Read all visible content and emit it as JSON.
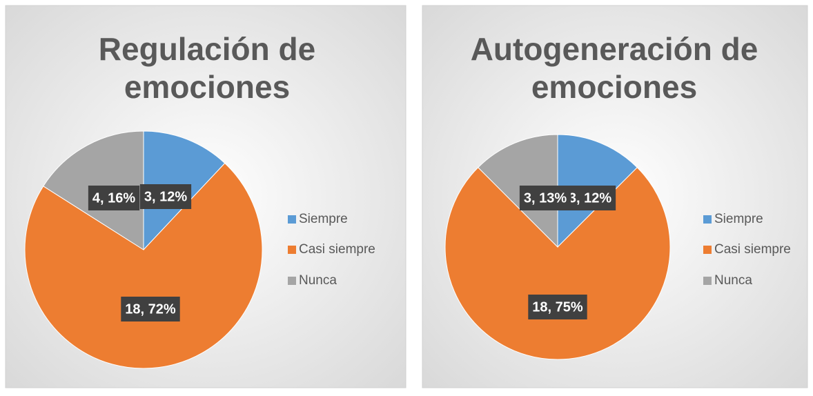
{
  "chart_data": [
    {
      "type": "pie",
      "title": "Regulación de emociones",
      "categories": [
        "Siempre",
        "Casi siempre",
        "Nunca"
      ],
      "values": [
        3,
        18,
        4
      ],
      "value_labels": [
        "3, 12%",
        "18, 72%",
        "4, 16%"
      ],
      "colors": [
        "#5b9bd5",
        "#ed7d31",
        "#a5a5a5"
      ],
      "legend": "right"
    },
    {
      "type": "pie",
      "title": "Autogeneración de emociones",
      "categories": [
        "Siempre",
        "Casi siempre",
        "Nunca"
      ],
      "values": [
        3,
        18,
        3
      ],
      "value_labels": [
        "3, 12%",
        "18, 75%",
        "3, 13%"
      ],
      "colors": [
        "#5b9bd5",
        "#ed7d31",
        "#a5a5a5"
      ],
      "legend": "right"
    }
  ]
}
